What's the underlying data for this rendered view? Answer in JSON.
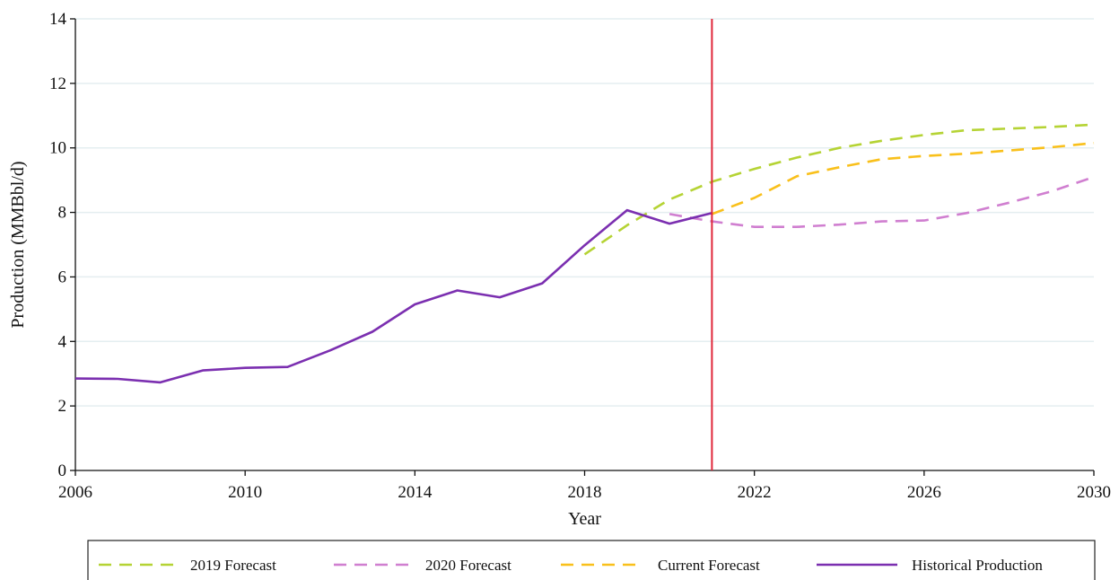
{
  "chart_data": {
    "type": "line",
    "title": "",
    "xlabel": "Year",
    "ylabel": "Production (MMBbl/d)",
    "xlim": [
      2006,
      2030
    ],
    "ylim": [
      0,
      14
    ],
    "x_ticks": [
      2006,
      2010,
      2014,
      2018,
      2022,
      2026,
      2030
    ],
    "y_ticks": [
      0,
      2,
      4,
      6,
      8,
      10,
      12,
      14
    ],
    "grid": "horizontal",
    "legend_position": "bottom",
    "vertical_marker": {
      "x": 2021,
      "color": "#e0283a"
    },
    "series": [
      {
        "name": "2019 Forecast",
        "color": "#b5d334",
        "style": "dashed",
        "x": [
          2018,
          2019,
          2020,
          2021,
          2022,
          2023,
          2024,
          2025,
          2026,
          2027,
          2028,
          2029,
          2030
        ],
        "y": [
          6.7,
          7.6,
          8.4,
          8.95,
          9.35,
          9.7,
          10.0,
          10.22,
          10.4,
          10.55,
          10.6,
          10.65,
          10.72
        ]
      },
      {
        "name": "2020 Forecast",
        "color": "#d07fd0",
        "style": "dashed",
        "x": [
          2020,
          2021,
          2022,
          2023,
          2024,
          2025,
          2026,
          2027,
          2028,
          2029,
          2030
        ],
        "y": [
          7.95,
          7.72,
          7.55,
          7.55,
          7.62,
          7.72,
          7.75,
          7.98,
          8.3,
          8.65,
          9.1
        ]
      },
      {
        "name": "Current Forecast",
        "color": "#f9c01b",
        "style": "dashed",
        "x": [
          2021,
          2022,
          2023,
          2024,
          2025,
          2026,
          2027,
          2028,
          2029,
          2030
        ],
        "y": [
          7.95,
          8.45,
          9.12,
          9.4,
          9.65,
          9.75,
          9.82,
          9.92,
          10.02,
          10.15
        ]
      },
      {
        "name": "Historical Production",
        "color": "#7b2fb0",
        "style": "solid",
        "x": [
          2006,
          2007,
          2008,
          2009,
          2010,
          2011,
          2012,
          2013,
          2014,
          2015,
          2016,
          2017,
          2018,
          2019,
          2020,
          2021
        ],
        "y": [
          2.85,
          2.84,
          2.73,
          3.1,
          3.18,
          3.21,
          3.72,
          4.3,
          5.15,
          5.58,
          5.37,
          5.8,
          6.98,
          8.07,
          7.65,
          7.98
        ]
      }
    ]
  }
}
